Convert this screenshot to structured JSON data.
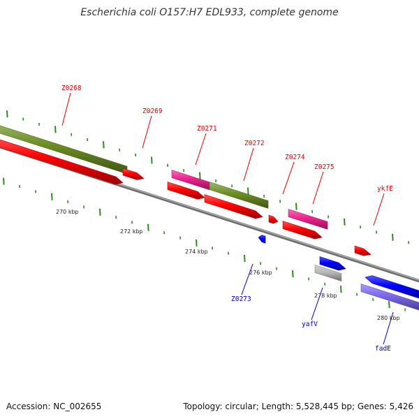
{
  "title": "Escherichia coli O157:H7 EDL933, complete genome",
  "footer": {
    "accession": "Accession: NC_002655",
    "summary": "Topology: circular; Length: 5,528,445 bp; Genes: 5,426"
  },
  "colors": {
    "backbone": "#8a8a8a",
    "tick": "#2e8b1e",
    "red": "#ff0000",
    "olive": "#6b8e23",
    "magenta": "#ee2290",
    "blue": "#0000ff",
    "gray": "#b8b8b8",
    "slate": "#7b68ee",
    "label_red": "#e00000",
    "label_blue": "#0000b0"
  },
  "ruler": [
    {
      "label": "270 kbp"
    },
    {
      "label": "272 kbp"
    },
    {
      "label": "274 kbp"
    },
    {
      "label": "276 kbp"
    },
    {
      "label": "278 kbp"
    },
    {
      "label": "280 kbp"
    }
  ],
  "features": [
    {
      "type": "olive"
    },
    {
      "type": "red"
    },
    {
      "type": "red"
    },
    {
      "type": "magenta"
    },
    {
      "type": "olive"
    },
    {
      "type": "red"
    },
    {
      "type": "red"
    },
    {
      "type": "red"
    },
    {
      "type": "magenta"
    },
    {
      "type": "red"
    },
    {
      "type": "red"
    },
    {
      "type": "blue"
    },
    {
      "type": "blue"
    },
    {
      "type": "gray"
    },
    {
      "type": "blue"
    },
    {
      "type": "slate"
    }
  ],
  "gene_labels": [
    {
      "text": "Z0268",
      "color": "label_red"
    },
    {
      "text": "Z0269",
      "color": "label_red"
    },
    {
      "text": "Z0271",
      "color": "label_red"
    },
    {
      "text": "Z0272",
      "color": "label_red"
    },
    {
      "text": "Z0274",
      "color": "label_red"
    },
    {
      "text": "Z0275",
      "color": "label_red"
    },
    {
      "text": "ykfE",
      "color": "label_red"
    },
    {
      "text": "Z0273",
      "color": "label_blue"
    },
    {
      "text": "yafV",
      "color": "label_blue"
    },
    {
      "text": "fadE",
      "color": "label_blue"
    }
  ]
}
